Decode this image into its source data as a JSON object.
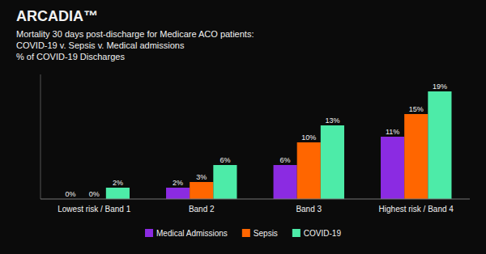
{
  "chart_data": {
    "type": "bar",
    "title": "Mortality 30 days post-discharge for Medicare ACO patients:\nCOVID-19 v. Sepsis v. Medical admissions\n% of COVID-19 Discharges",
    "annotations": [
      {
        "text": "ARCADIA™"
      }
    ],
    "categories": [
      "Lowest risk / Band 1",
      "Band 2",
      "Band 3",
      "Highest risk / Band 4"
    ],
    "series": [
      {
        "name": "Medical Admissions",
        "color": "#8B2BE2",
        "values": [
          0,
          2,
          6,
          11
        ],
        "value_labels": [
          "0%",
          "2%",
          "6%",
          "11%"
        ]
      },
      {
        "name": "Sepsis",
        "color": "#FF6600",
        "values": [
          0,
          3,
          10,
          15
        ],
        "value_labels": [
          "0%",
          "3%",
          "10%",
          "15%"
        ]
      },
      {
        "name": "COVID-19",
        "color": "#4DEBA8",
        "values": [
          2,
          6,
          13,
          19
        ],
        "value_labels": [
          "2%",
          "6%",
          "13%",
          "19%"
        ]
      }
    ],
    "ylim": [
      0,
      22
    ],
    "data_labels": true,
    "tick_labels": "x",
    "grid": false,
    "legend": "bottom"
  }
}
